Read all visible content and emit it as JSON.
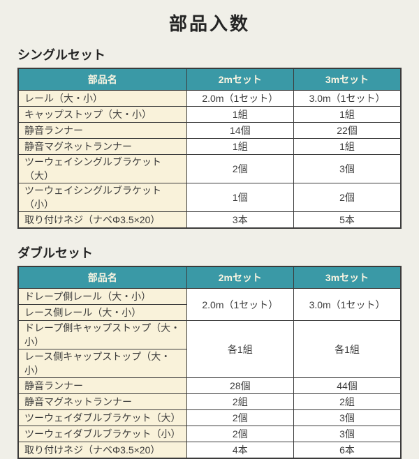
{
  "page_title": "部品入数",
  "colors": {
    "page_bg": "#f0efe8",
    "header_bg": "#3a99a6",
    "header_text": "#fbf5e2",
    "name_cell_bg": "#f9f2da",
    "value_cell_bg": "#ffffff",
    "border": "#3b3b3b",
    "text": "#3c3c3c"
  },
  "single_set": {
    "section_title": "シングルセット",
    "headers": [
      "部品名",
      "2mセット",
      "3mセット"
    ],
    "rows": [
      {
        "name": "レール（大・小）",
        "v2m": "2.0m（1セット）",
        "v3m": "3.0m（1セット）"
      },
      {
        "name": "キャップストップ（大・小）",
        "v2m": "1組",
        "v3m": "1組"
      },
      {
        "name": "静音ランナー",
        "v2m": "14個",
        "v3m": "22個"
      },
      {
        "name": "静音マグネットランナー",
        "v2m": "1組",
        "v3m": "1組"
      },
      {
        "name": "ツーウェイシングルブラケット（大）",
        "v2m": "2個",
        "v3m": "3個"
      },
      {
        "name": "ツーウェイシングルブラケット（小）",
        "v2m": "1個",
        "v3m": "2個"
      },
      {
        "name": "取り付けネジ（ナベΦ3.5×20）",
        "v2m": "3本",
        "v3m": "5本"
      }
    ]
  },
  "double_set": {
    "section_title": "ダブルセット",
    "headers": [
      "部品名",
      "2mセット",
      "3mセット"
    ],
    "rows": [
      {
        "name": "ドレープ側レール（大・小）",
        "v2m": "2.0m（1セット）",
        "v3m": "3.0m（1セット）",
        "note": "value cells span this row and the next"
      },
      {
        "name": "レース側レール（大・小）"
      },
      {
        "name": "ドレープ側キャップストップ（大・小）",
        "v2m": "各1組",
        "v3m": "各1組",
        "note": "value cells span this row and the next"
      },
      {
        "name": "レース側キャップストップ（大・小）"
      },
      {
        "name": "静音ランナー",
        "v2m": "28個",
        "v3m": "44個"
      },
      {
        "name": "静音マグネットランナー",
        "v2m": "2組",
        "v3m": "2組"
      },
      {
        "name": "ツーウェイダブルブラケット（大）",
        "v2m": "2個",
        "v3m": "3個"
      },
      {
        "name": "ツーウェイダブルブラケット（小）",
        "v2m": "2個",
        "v3m": "3個"
      },
      {
        "name": "取り付けネジ（ナベΦ3.5×20）",
        "v2m": "4本",
        "v3m": "6本"
      }
    ]
  }
}
